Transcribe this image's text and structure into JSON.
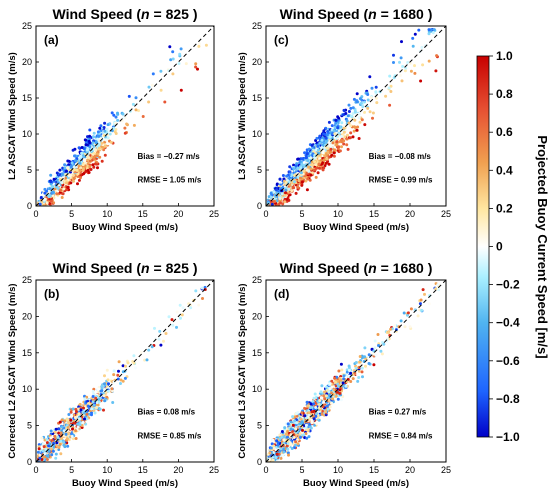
{
  "chart_data": [
    {
      "type": "scatter",
      "panel": "(a)",
      "title_prefix": "Wind Speed (",
      "title_n": "n",
      "title_suffix": " = 825 )",
      "xlabel": "Buoy Wind Speed (m/s)",
      "ylabel": "L2 ASCAT Wind Speed (m/s)",
      "xlim": [
        0,
        25
      ],
      "ylim": [
        0,
        25
      ],
      "xticks": [
        "0",
        "5",
        "10",
        "15",
        "20",
        "25"
      ],
      "yticks": [
        "0",
        "5",
        "10",
        "15",
        "20",
        "25"
      ],
      "bias_label": "Bias  = −0.27 m/s",
      "rmse_label": "RMSE = 1.05 m/s",
      "reference_line": "1:1 dashed",
      "points_approx": {
        "count": 825,
        "mean_offset": -0.27,
        "spread": 1.05
      }
    },
    {
      "type": "scatter",
      "panel": "(c)",
      "title_prefix": "Wind Speed (",
      "title_n": "n",
      "title_suffix": " = 1680 )",
      "xlabel": "Buoy Wind Speed (m/s)",
      "ylabel": "L3 ASCAT Wind Speed (m/s)",
      "xlim": [
        0,
        25
      ],
      "ylim": [
        0,
        25
      ],
      "xticks": [
        "0",
        "5",
        "10",
        "15",
        "20",
        "25"
      ],
      "yticks": [
        "0",
        "5",
        "10",
        "15",
        "20",
        "25"
      ],
      "bias_label": "Bias  = −0.08 m/s",
      "rmse_label": "RMSE = 0.99 m/s",
      "reference_line": "1:1 dashed",
      "points_approx": {
        "count": 1680,
        "mean_offset": -0.08,
        "spread": 0.99
      }
    },
    {
      "type": "scatter",
      "panel": "(b)",
      "title_prefix": "Wind Speed (",
      "title_n": "n",
      "title_suffix": " = 825 )",
      "xlabel": "Buoy Wind Speed (m/s)",
      "ylabel": "Corrected L2 ASCAT Wind Speed (m/s)",
      "xlim": [
        0,
        25
      ],
      "ylim": [
        0,
        25
      ],
      "xticks": [
        "0",
        "5",
        "10",
        "15",
        "20",
        "25"
      ],
      "yticks": [
        "0",
        "5",
        "10",
        "15",
        "20",
        "25"
      ],
      "bias_label": "Bias  = 0.08 m/s",
      "rmse_label": "RMSE = 0.85 m/s",
      "reference_line": "1:1 dashed",
      "points_approx": {
        "count": 825,
        "mean_offset": 0.08,
        "spread": 0.85
      }
    },
    {
      "type": "scatter",
      "panel": "(d)",
      "title_prefix": "Wind Speed (",
      "title_n": "n",
      "title_suffix": " = 1680 )",
      "xlabel": "Buoy Wind Speed (m/s)",
      "ylabel": "Corrected L3 ASCAT Wind Speed (m/s)",
      "xlim": [
        0,
        25
      ],
      "ylim": [
        0,
        25
      ],
      "xticks": [
        "0",
        "5",
        "10",
        "15",
        "20",
        "25"
      ],
      "yticks": [
        "0",
        "5",
        "10",
        "15",
        "20",
        "25"
      ],
      "bias_label": "Bias  = 0.27 m/s",
      "rmse_label": "RMSE = 0.84 m/s",
      "reference_line": "1:1 dashed",
      "points_approx": {
        "count": 1680,
        "mean_offset": 0.27,
        "spread": 0.84
      }
    }
  ],
  "colorbar": {
    "label": "Projected Buoy Current Speed [m/s]",
    "range": [
      -1.0,
      1.0
    ],
    "ticks": [
      "1.0",
      "0.8",
      "0.6",
      "0.4",
      "0.2",
      "0",
      "−0.2",
      "−0.4",
      "−0.6",
      "−0.8",
      "−1.0"
    ],
    "colormap": "RdYlBu reversed",
    "colors": [
      "#0000c8",
      "#1e64ff",
      "#50b4f0",
      "#aaf0ff",
      "#ffffff",
      "#ffe6a0",
      "#f0a050",
      "#e65032",
      "#c80000"
    ]
  }
}
